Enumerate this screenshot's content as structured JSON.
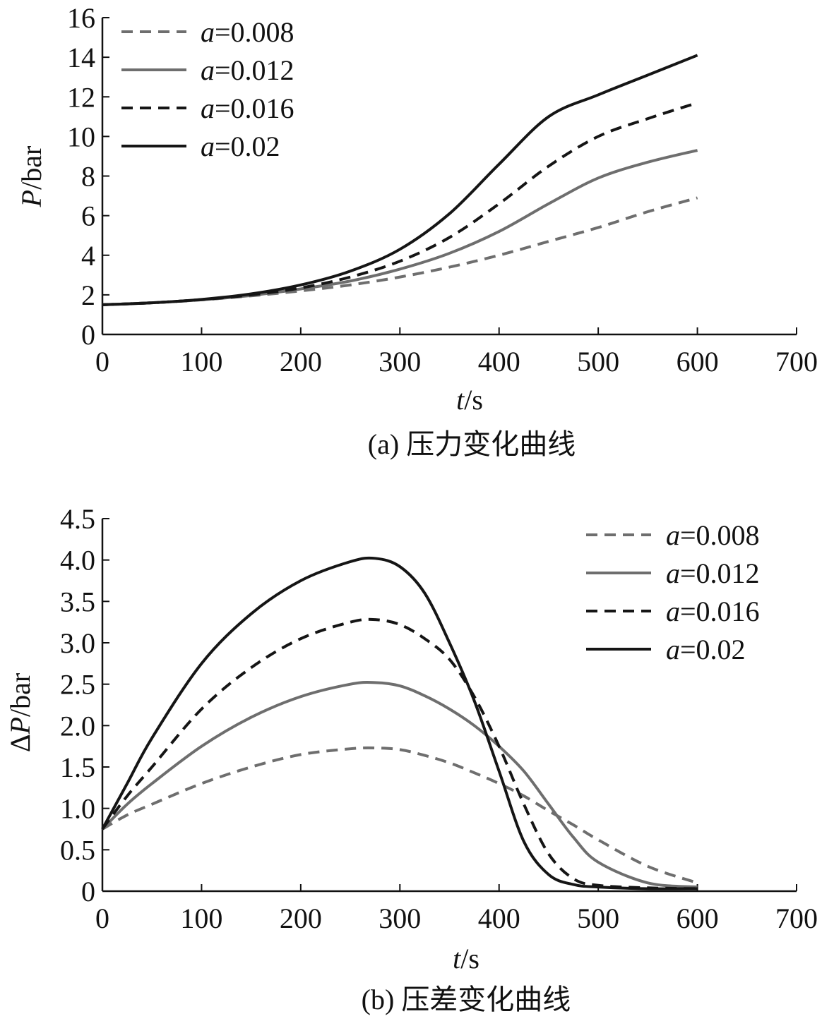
{
  "chart_data": [
    {
      "type": "line",
      "id": "a",
      "caption": "(a) 压力变化曲线",
      "xlabel_italic": "t",
      "xlabel_rest": "/s",
      "ylabel_italic": "P",
      "ylabel_rest": "/bar",
      "xlim": [
        0,
        700
      ],
      "ylim": [
        0,
        16
      ],
      "xticks": [
        0,
        100,
        200,
        300,
        400,
        500,
        600,
        700
      ],
      "yticks": [
        0,
        2,
        4,
        6,
        8,
        10,
        12,
        14,
        16
      ],
      "legend_position": "top-left",
      "x": [
        0,
        50,
        100,
        150,
        200,
        250,
        300,
        350,
        400,
        450,
        500,
        550,
        600
      ],
      "series": [
        {
          "name_italic": "a",
          "name_rest": "=0.008",
          "color": "#6e6e6e",
          "style": "dashed",
          "values": [
            1.5,
            1.6,
            1.75,
            1.95,
            2.2,
            2.5,
            2.9,
            3.4,
            4.0,
            4.7,
            5.4,
            6.2,
            6.9
          ]
        },
        {
          "name_italic": "a",
          "name_rest": "=0.012",
          "color": "#6e6e6e",
          "style": "solid",
          "values": [
            1.5,
            1.6,
            1.75,
            1.97,
            2.3,
            2.7,
            3.3,
            4.1,
            5.2,
            6.6,
            7.9,
            8.7,
            9.3
          ]
        },
        {
          "name_italic": "a",
          "name_rest": "=0.016",
          "color": "#151515",
          "style": "dashed",
          "values": [
            1.5,
            1.6,
            1.76,
            2.0,
            2.35,
            2.9,
            3.7,
            4.9,
            6.6,
            8.5,
            10.0,
            10.9,
            11.7
          ]
        },
        {
          "name_italic": "a",
          "name_rest": "=0.02",
          "color": "#151515",
          "style": "solid",
          "values": [
            1.5,
            1.6,
            1.77,
            2.05,
            2.5,
            3.2,
            4.3,
            6.1,
            8.6,
            11.0,
            12.1,
            13.1,
            14.1
          ]
        }
      ]
    },
    {
      "type": "line",
      "id": "b",
      "caption": "(b) 压差变化曲线",
      "xlabel_italic": "t",
      "xlabel_rest": "/s",
      "ylabel_delta": "Δ",
      "ylabel_italic": "P",
      "ylabel_rest": "/bar",
      "xlim": [
        0,
        700
      ],
      "ylim": [
        0,
        4.5
      ],
      "xticks": [
        0,
        100,
        200,
        300,
        400,
        500,
        600,
        700
      ],
      "yticks": [
        "0",
        "0.5",
        "1.0",
        "1.5",
        "2.0",
        "2.5",
        "3.0",
        "3.5",
        "4.0",
        "4.5"
      ],
      "legend_position": "top-right",
      "x": [
        0,
        25,
        50,
        100,
        150,
        200,
        250,
        275,
        300,
        325,
        350,
        375,
        400,
        425,
        450,
        475,
        500,
        550,
        600
      ],
      "series": [
        {
          "name_italic": "a",
          "name_rest": "=0.008",
          "color": "#6e6e6e",
          "style": "dashed",
          "values": [
            0.75,
            0.92,
            1.05,
            1.3,
            1.5,
            1.65,
            1.72,
            1.73,
            1.71,
            1.64,
            1.55,
            1.43,
            1.3,
            1.15,
            0.97,
            0.8,
            0.62,
            0.3,
            0.1
          ]
        },
        {
          "name_italic": "a",
          "name_rest": "=0.012",
          "color": "#6e6e6e",
          "style": "solid",
          "values": [
            0.75,
            1.05,
            1.3,
            1.75,
            2.1,
            2.35,
            2.5,
            2.52,
            2.48,
            2.36,
            2.2,
            2.0,
            1.75,
            1.45,
            1.05,
            0.65,
            0.35,
            0.1,
            0.05
          ]
        },
        {
          "name_italic": "a",
          "name_rest": "=0.016",
          "color": "#151515",
          "style": "dashed",
          "values": [
            0.75,
            1.15,
            1.5,
            2.2,
            2.7,
            3.05,
            3.25,
            3.28,
            3.22,
            3.05,
            2.8,
            2.35,
            1.75,
            1.05,
            0.45,
            0.15,
            0.07,
            0.04,
            0.03
          ]
        },
        {
          "name_italic": "a",
          "name_rest": "=0.02",
          "color": "#151515",
          "style": "solid",
          "values": [
            0.75,
            1.3,
            1.85,
            2.75,
            3.35,
            3.75,
            3.98,
            4.02,
            3.92,
            3.6,
            3.0,
            2.3,
            1.45,
            0.6,
            0.2,
            0.08,
            0.05,
            0.03,
            0.03
          ]
        }
      ]
    }
  ]
}
